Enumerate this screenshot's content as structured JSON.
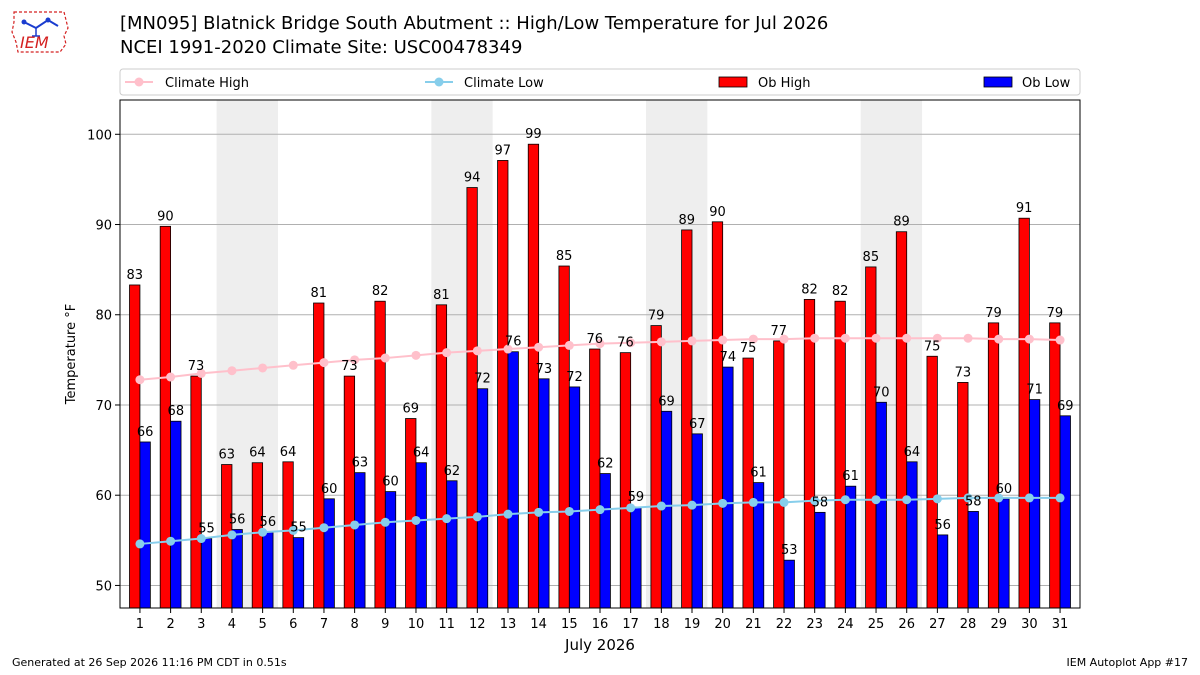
{
  "header": {
    "title_line1": "[MN095] Blatnick Bridge South Abutment :: High/Low Temperature for Jul 2026",
    "title_line2": "NCEI 1991-2020 Climate Site: USC00478349",
    "logo_text": "IEM"
  },
  "footer": {
    "generated": "Generated at 26 Sep 2026 11:16 PM CDT in 0.51s",
    "app": "IEM Autoplot App #17"
  },
  "colors": {
    "ob_high": "#ff0000",
    "ob_low": "#0000ff",
    "climate_high": "#ffc0cb",
    "climate_low": "#87ceeb",
    "weekend_shade": "#eeeeee",
    "logo": "#d42020"
  },
  "chart_data": {
    "type": "bar",
    "xlabel": "July 2026",
    "ylabel": "Temperature °F",
    "ylim": [
      47.5,
      103.8
    ],
    "yticks": [
      50,
      60,
      70,
      80,
      90,
      100
    ],
    "grid": true,
    "legend_position": "top",
    "shaded_day_ranges": [
      [
        4,
        5
      ],
      [
        11,
        12
      ],
      [
        18,
        19
      ],
      [
        25,
        26
      ]
    ],
    "categories": [
      "1",
      "2",
      "3",
      "4",
      "5",
      "6",
      "7",
      "8",
      "9",
      "10",
      "11",
      "12",
      "13",
      "14",
      "15",
      "16",
      "17",
      "18",
      "19",
      "20",
      "21",
      "22",
      "23",
      "24",
      "25",
      "26",
      "27",
      "28",
      "29",
      "30",
      "31"
    ],
    "series": [
      {
        "name": "Climate High",
        "kind": "line",
        "values": [
          72.8,
          73.1,
          73.5,
          73.8,
          74.1,
          74.4,
          74.7,
          75.0,
          75.2,
          75.5,
          75.8,
          76.0,
          76.2,
          76.4,
          76.6,
          76.8,
          76.9,
          77.0,
          77.1,
          77.2,
          77.3,
          77.3,
          77.4,
          77.4,
          77.4,
          77.4,
          77.4,
          77.4,
          77.3,
          77.3,
          77.2
        ]
      },
      {
        "name": "Climate Low",
        "kind": "line",
        "values": [
          54.6,
          54.9,
          55.2,
          55.6,
          55.9,
          56.1,
          56.4,
          56.7,
          57.0,
          57.2,
          57.4,
          57.6,
          57.9,
          58.1,
          58.2,
          58.4,
          58.6,
          58.8,
          58.9,
          59.1,
          59.2,
          59.2,
          59.4,
          59.5,
          59.5,
          59.5,
          59.6,
          59.7,
          59.7,
          59.7,
          59.7
        ]
      },
      {
        "name": "Ob High",
        "kind": "bar",
        "values": [
          83.3,
          89.8,
          73.2,
          63.4,
          63.6,
          63.7,
          81.3,
          73.2,
          81.5,
          68.5,
          81.1,
          94.1,
          97.1,
          98.9,
          85.4,
          76.2,
          75.8,
          78.8,
          89.4,
          90.3,
          75.2,
          77.1,
          81.7,
          81.5,
          85.3,
          89.2,
          75.4,
          72.5,
          79.1,
          90.7,
          79.1
        ]
      },
      {
        "name": "Ob Low",
        "kind": "bar",
        "values": [
          65.9,
          68.2,
          55.2,
          56.2,
          55.9,
          55.3,
          59.6,
          62.5,
          60.4,
          63.6,
          61.6,
          71.8,
          75.9,
          72.9,
          72.0,
          62.4,
          58.7,
          69.3,
          66.8,
          74.2,
          61.4,
          52.8,
          58.1,
          61.0,
          70.3,
          63.7,
          55.6,
          58.2,
          59.6,
          70.6,
          68.8
        ]
      }
    ]
  }
}
